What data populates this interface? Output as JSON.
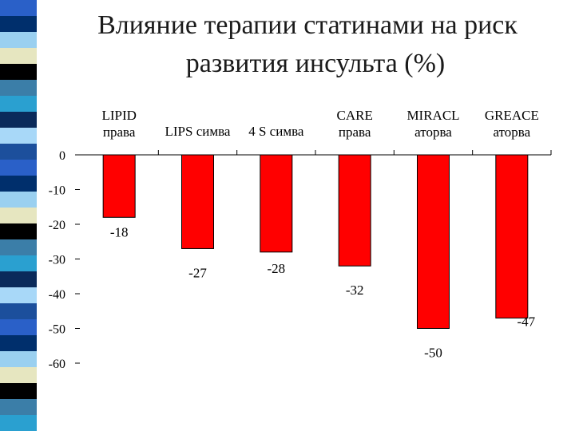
{
  "title": {
    "line1": "Влияние терапии статинами на риск",
    "line2": "развития инсульта (%)"
  },
  "colors": {
    "bar": "#ff0000",
    "stripes": [
      "#2a60c8",
      "#002f6c",
      "#9ad0f0",
      "#e6e6c0",
      "#000000",
      "#3b7ea8",
      "#2aa0d0",
      "#0a2a5a",
      "#a8d8f8",
      "#1c4f9c"
    ]
  },
  "chart_data": {
    "type": "bar",
    "title": "Влияние терапии статинами на риск развития инсульта (%)",
    "categories": [
      [
        "LIPID",
        "права"
      ],
      [
        "LIPS симва"
      ],
      [
        "4 S симва"
      ],
      [
        "CARE",
        "права"
      ],
      [
        "MIRACL",
        "аторва"
      ],
      [
        "GREACE",
        "аторва"
      ]
    ],
    "values": [
      -18,
      -27,
      -28,
      -32,
      -50,
      -47
    ],
    "data_labels": [
      "-18",
      "-27",
      "-28",
      "-32",
      "-50",
      "-47"
    ],
    "ylim": [
      -60,
      0
    ],
    "yticks": [
      0,
      -10,
      -20,
      -30,
      -40,
      -50,
      -60
    ],
    "ytick_labels": [
      "0",
      "-10",
      "-20",
      "-30",
      "-40",
      "-50",
      "-60"
    ],
    "xlabel": "",
    "ylabel": "",
    "grid": false,
    "category_position": "top"
  }
}
